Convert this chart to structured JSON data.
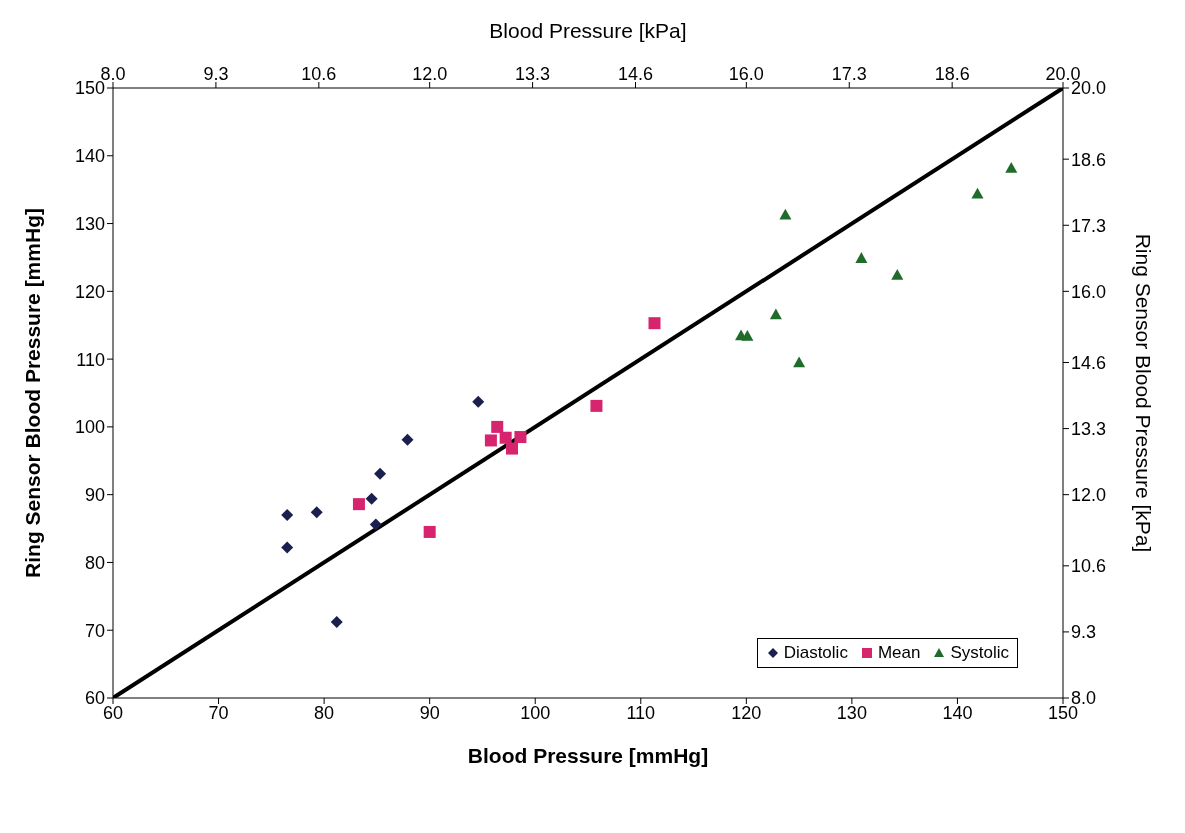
{
  "chart_data": {
    "type": "scatter",
    "xlabel": "Blood Pressure [mmHg]",
    "ylabel": "Ring Sensor Blood Pressure [mmHg]",
    "x2label": "Blood Pressure [kPa]",
    "y2label": "Ring Sensor Blood Pressure [kPa]",
    "xlim": [
      60,
      150
    ],
    "xticks": [
      60,
      70,
      80,
      90,
      100,
      110,
      120,
      130,
      140,
      150
    ],
    "ylim": [
      60,
      150
    ],
    "yticks": [
      60,
      70,
      80,
      90,
      100,
      110,
      120,
      130,
      140,
      150
    ],
    "x2lim": [
      8.0,
      20.0
    ],
    "x2ticks": [
      {
        "value": 8,
        "label": "8.0"
      },
      9.3,
      10.6,
      {
        "value": 12,
        "label": "12.0"
      },
      13.3,
      14.6,
      {
        "value": 16,
        "label": "16.0"
      },
      17.3,
      18.6,
      {
        "value": 20,
        "label": "20.0"
      }
    ],
    "y2lim": [
      8.0,
      20.0
    ],
    "y2ticks": [
      {
        "value": 8,
        "label": "8.0"
      },
      9.3,
      10.6,
      {
        "value": 12,
        "label": "12.0"
      },
      13.3,
      14.6,
      {
        "value": 16,
        "label": "16.0"
      },
      17.3,
      18.6,
      {
        "value": 20,
        "label": "20.0"
      }
    ],
    "grid": false,
    "legend": "bottom right",
    "series": [
      {
        "name": "Diastolic",
        "color": "#1a1f4d",
        "marker": "diamond",
        "x": [
          76.5,
          76.5,
          79.3,
          81.2,
          84.5,
          84.9,
          85.3,
          87.9,
          94.6
        ],
        "values": [
          82.2,
          87.0,
          87.4,
          71.2,
          89.4,
          85.6,
          93.1,
          98.1,
          103.7
        ]
      },
      {
        "name": "Mean",
        "color": "#d6246e",
        "marker": "square",
        "x": [
          83.3,
          90.0,
          95.8,
          96.4,
          97.2,
          97.8,
          98.6,
          105.8,
          111.3
        ],
        "values": [
          88.6,
          84.5,
          98.0,
          100.0,
          98.4,
          96.8,
          98.5,
          103.1,
          115.3
        ]
      },
      {
        "name": "Systolic",
        "color": "#1e6b2a",
        "marker": "triangle",
        "x": [
          119.5,
          120.1,
          122.8,
          123.7,
          125.0,
          130.9,
          134.3,
          141.9,
          145.1
        ],
        "values": [
          113.5,
          113.4,
          116.6,
          131.3,
          109.5,
          124.9,
          122.4,
          134.4,
          138.2
        ]
      },
      {
        "type": "line",
        "color": "#000000",
        "marker": "none",
        "x": [
          60,
          150
        ],
        "values": [
          60,
          150
        ]
      }
    ]
  }
}
